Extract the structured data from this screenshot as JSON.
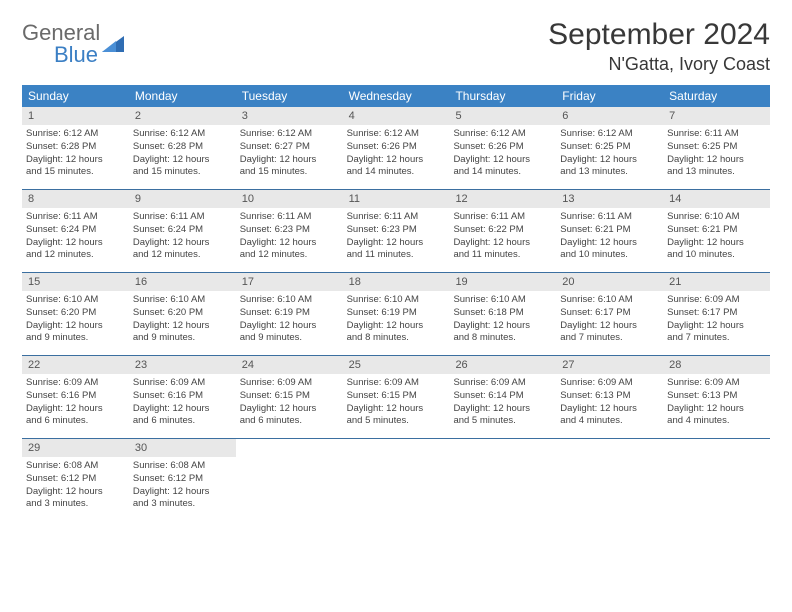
{
  "logo": {
    "word1": "General",
    "word2": "Blue"
  },
  "title": "September 2024",
  "location": "N'Gatta, Ivory Coast",
  "colors": {
    "header_bg": "#3b82c4",
    "header_text": "#ffffff",
    "daynum_bg": "#e8e8e8",
    "daynum_text": "#555555",
    "detail_text": "#444444",
    "week_border": "#3b6fa0",
    "logo_gray": "#6a6a6a",
    "logo_blue": "#3b7fc4"
  },
  "day_names": [
    "Sunday",
    "Monday",
    "Tuesday",
    "Wednesday",
    "Thursday",
    "Friday",
    "Saturday"
  ],
  "weeks": [
    [
      {
        "n": "1",
        "sr": "Sunrise: 6:12 AM",
        "ss": "Sunset: 6:28 PM",
        "d1": "Daylight: 12 hours",
        "d2": "and 15 minutes."
      },
      {
        "n": "2",
        "sr": "Sunrise: 6:12 AM",
        "ss": "Sunset: 6:28 PM",
        "d1": "Daylight: 12 hours",
        "d2": "and 15 minutes."
      },
      {
        "n": "3",
        "sr": "Sunrise: 6:12 AM",
        "ss": "Sunset: 6:27 PM",
        "d1": "Daylight: 12 hours",
        "d2": "and 15 minutes."
      },
      {
        "n": "4",
        "sr": "Sunrise: 6:12 AM",
        "ss": "Sunset: 6:26 PM",
        "d1": "Daylight: 12 hours",
        "d2": "and 14 minutes."
      },
      {
        "n": "5",
        "sr": "Sunrise: 6:12 AM",
        "ss": "Sunset: 6:26 PM",
        "d1": "Daylight: 12 hours",
        "d2": "and 14 minutes."
      },
      {
        "n": "6",
        "sr": "Sunrise: 6:12 AM",
        "ss": "Sunset: 6:25 PM",
        "d1": "Daylight: 12 hours",
        "d2": "and 13 minutes."
      },
      {
        "n": "7",
        "sr": "Sunrise: 6:11 AM",
        "ss": "Sunset: 6:25 PM",
        "d1": "Daylight: 12 hours",
        "d2": "and 13 minutes."
      }
    ],
    [
      {
        "n": "8",
        "sr": "Sunrise: 6:11 AM",
        "ss": "Sunset: 6:24 PM",
        "d1": "Daylight: 12 hours",
        "d2": "and 12 minutes."
      },
      {
        "n": "9",
        "sr": "Sunrise: 6:11 AM",
        "ss": "Sunset: 6:24 PM",
        "d1": "Daylight: 12 hours",
        "d2": "and 12 minutes."
      },
      {
        "n": "10",
        "sr": "Sunrise: 6:11 AM",
        "ss": "Sunset: 6:23 PM",
        "d1": "Daylight: 12 hours",
        "d2": "and 12 minutes."
      },
      {
        "n": "11",
        "sr": "Sunrise: 6:11 AM",
        "ss": "Sunset: 6:23 PM",
        "d1": "Daylight: 12 hours",
        "d2": "and 11 minutes."
      },
      {
        "n": "12",
        "sr": "Sunrise: 6:11 AM",
        "ss": "Sunset: 6:22 PM",
        "d1": "Daylight: 12 hours",
        "d2": "and 11 minutes."
      },
      {
        "n": "13",
        "sr": "Sunrise: 6:11 AM",
        "ss": "Sunset: 6:21 PM",
        "d1": "Daylight: 12 hours",
        "d2": "and 10 minutes."
      },
      {
        "n": "14",
        "sr": "Sunrise: 6:10 AM",
        "ss": "Sunset: 6:21 PM",
        "d1": "Daylight: 12 hours",
        "d2": "and 10 minutes."
      }
    ],
    [
      {
        "n": "15",
        "sr": "Sunrise: 6:10 AM",
        "ss": "Sunset: 6:20 PM",
        "d1": "Daylight: 12 hours",
        "d2": "and 9 minutes."
      },
      {
        "n": "16",
        "sr": "Sunrise: 6:10 AM",
        "ss": "Sunset: 6:20 PM",
        "d1": "Daylight: 12 hours",
        "d2": "and 9 minutes."
      },
      {
        "n": "17",
        "sr": "Sunrise: 6:10 AM",
        "ss": "Sunset: 6:19 PM",
        "d1": "Daylight: 12 hours",
        "d2": "and 9 minutes."
      },
      {
        "n": "18",
        "sr": "Sunrise: 6:10 AM",
        "ss": "Sunset: 6:19 PM",
        "d1": "Daylight: 12 hours",
        "d2": "and 8 minutes."
      },
      {
        "n": "19",
        "sr": "Sunrise: 6:10 AM",
        "ss": "Sunset: 6:18 PM",
        "d1": "Daylight: 12 hours",
        "d2": "and 8 minutes."
      },
      {
        "n": "20",
        "sr": "Sunrise: 6:10 AM",
        "ss": "Sunset: 6:17 PM",
        "d1": "Daylight: 12 hours",
        "d2": "and 7 minutes."
      },
      {
        "n": "21",
        "sr": "Sunrise: 6:09 AM",
        "ss": "Sunset: 6:17 PM",
        "d1": "Daylight: 12 hours",
        "d2": "and 7 minutes."
      }
    ],
    [
      {
        "n": "22",
        "sr": "Sunrise: 6:09 AM",
        "ss": "Sunset: 6:16 PM",
        "d1": "Daylight: 12 hours",
        "d2": "and 6 minutes."
      },
      {
        "n": "23",
        "sr": "Sunrise: 6:09 AM",
        "ss": "Sunset: 6:16 PM",
        "d1": "Daylight: 12 hours",
        "d2": "and 6 minutes."
      },
      {
        "n": "24",
        "sr": "Sunrise: 6:09 AM",
        "ss": "Sunset: 6:15 PM",
        "d1": "Daylight: 12 hours",
        "d2": "and 6 minutes."
      },
      {
        "n": "25",
        "sr": "Sunrise: 6:09 AM",
        "ss": "Sunset: 6:15 PM",
        "d1": "Daylight: 12 hours",
        "d2": "and 5 minutes."
      },
      {
        "n": "26",
        "sr": "Sunrise: 6:09 AM",
        "ss": "Sunset: 6:14 PM",
        "d1": "Daylight: 12 hours",
        "d2": "and 5 minutes."
      },
      {
        "n": "27",
        "sr": "Sunrise: 6:09 AM",
        "ss": "Sunset: 6:13 PM",
        "d1": "Daylight: 12 hours",
        "d2": "and 4 minutes."
      },
      {
        "n": "28",
        "sr": "Sunrise: 6:09 AM",
        "ss": "Sunset: 6:13 PM",
        "d1": "Daylight: 12 hours",
        "d2": "and 4 minutes."
      }
    ],
    [
      {
        "n": "29",
        "sr": "Sunrise: 6:08 AM",
        "ss": "Sunset: 6:12 PM",
        "d1": "Daylight: 12 hours",
        "d2": "and 3 minutes."
      },
      {
        "n": "30",
        "sr": "Sunrise: 6:08 AM",
        "ss": "Sunset: 6:12 PM",
        "d1": "Daylight: 12 hours",
        "d2": "and 3 minutes."
      },
      null,
      null,
      null,
      null,
      null
    ]
  ]
}
